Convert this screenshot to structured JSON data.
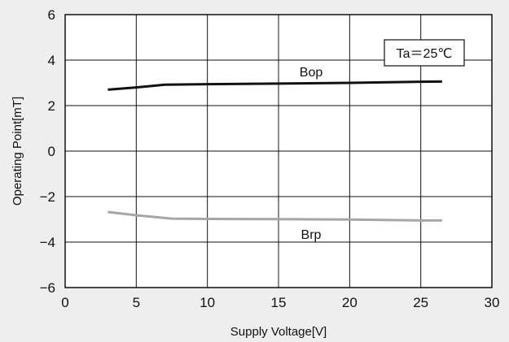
{
  "chart_data": {
    "type": "line",
    "xlabel": "Supply Voltage[V]",
    "ylabel": "Operating Point[mT]",
    "xlim": [
      0,
      30
    ],
    "ylim": [
      -6,
      6
    ],
    "xticks": [
      0,
      5,
      10,
      15,
      20,
      25,
      30
    ],
    "yticks": [
      6,
      4,
      2,
      0,
      -2,
      -4,
      -6
    ],
    "xtick_labels": [
      "0",
      "5",
      "10",
      "15",
      "20",
      "25",
      "30"
    ],
    "ytick_labels": [
      "6",
      "4",
      "2",
      "0",
      "−2",
      "−4",
      "−6"
    ],
    "grid": true,
    "annotation": "Ta＝25℃",
    "series": [
      {
        "name": "Bop",
        "color": "#111111",
        "x": [
          3,
          5,
          7,
          10,
          15,
          20,
          25,
          26.5
        ],
        "y": [
          2.7,
          2.8,
          2.92,
          2.94,
          2.97,
          3.0,
          3.05,
          3.06
        ]
      },
      {
        "name": "Brp",
        "color": "#a6a6a6",
        "x": [
          3,
          5,
          7.5,
          10,
          15,
          20,
          25,
          26.5
        ],
        "y": [
          -2.68,
          -2.82,
          -2.97,
          -2.98,
          -2.99,
          -3.01,
          -3.05,
          -3.05
        ]
      }
    ]
  }
}
